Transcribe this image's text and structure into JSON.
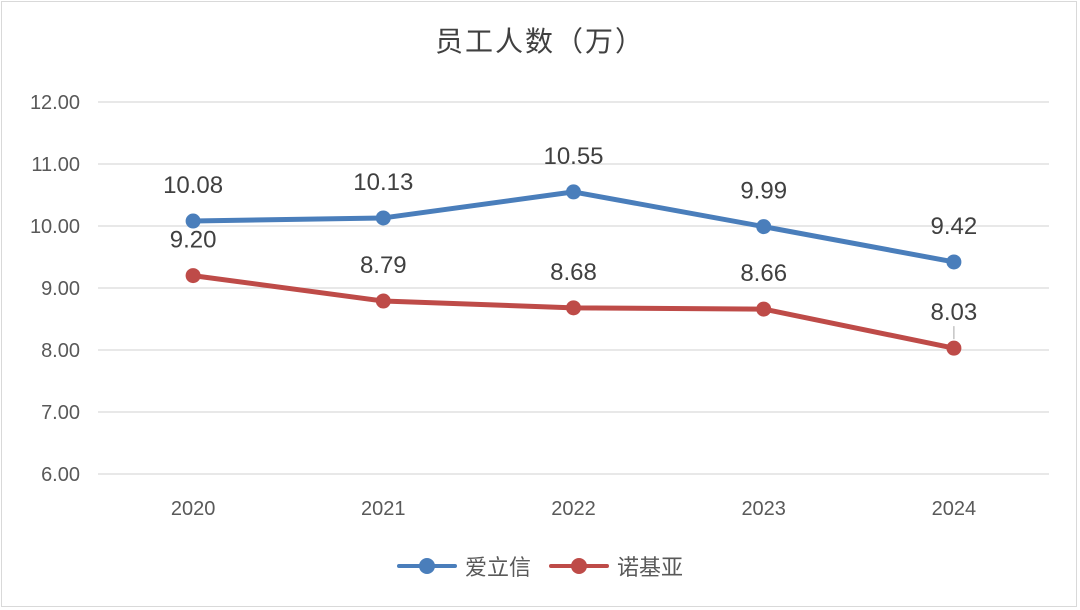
{
  "chart_data": {
    "type": "line",
    "title": "员工人数（万）",
    "categories": [
      "2020",
      "2021",
      "2022",
      "2023",
      "2024"
    ],
    "ylim": [
      6,
      12
    ],
    "yticks": [
      "6.00",
      "7.00",
      "8.00",
      "9.00",
      "10.00",
      "11.00",
      "12.00"
    ],
    "grid": true,
    "legend_position": "bottom",
    "series": [
      {
        "name": "爱立信",
        "color": "#4a7ebb",
        "values": [
          10.08,
          10.13,
          10.55,
          9.99,
          9.42
        ],
        "labels": [
          "10.08",
          "10.13",
          "10.55",
          "9.99",
          "9.42"
        ]
      },
      {
        "name": "诺基亚",
        "color": "#be4b48",
        "values": [
          9.2,
          8.79,
          8.68,
          8.66,
          8.03
        ],
        "labels": [
          "9.20",
          "8.79",
          "8.68",
          "8.66",
          "8.03"
        ]
      }
    ]
  }
}
